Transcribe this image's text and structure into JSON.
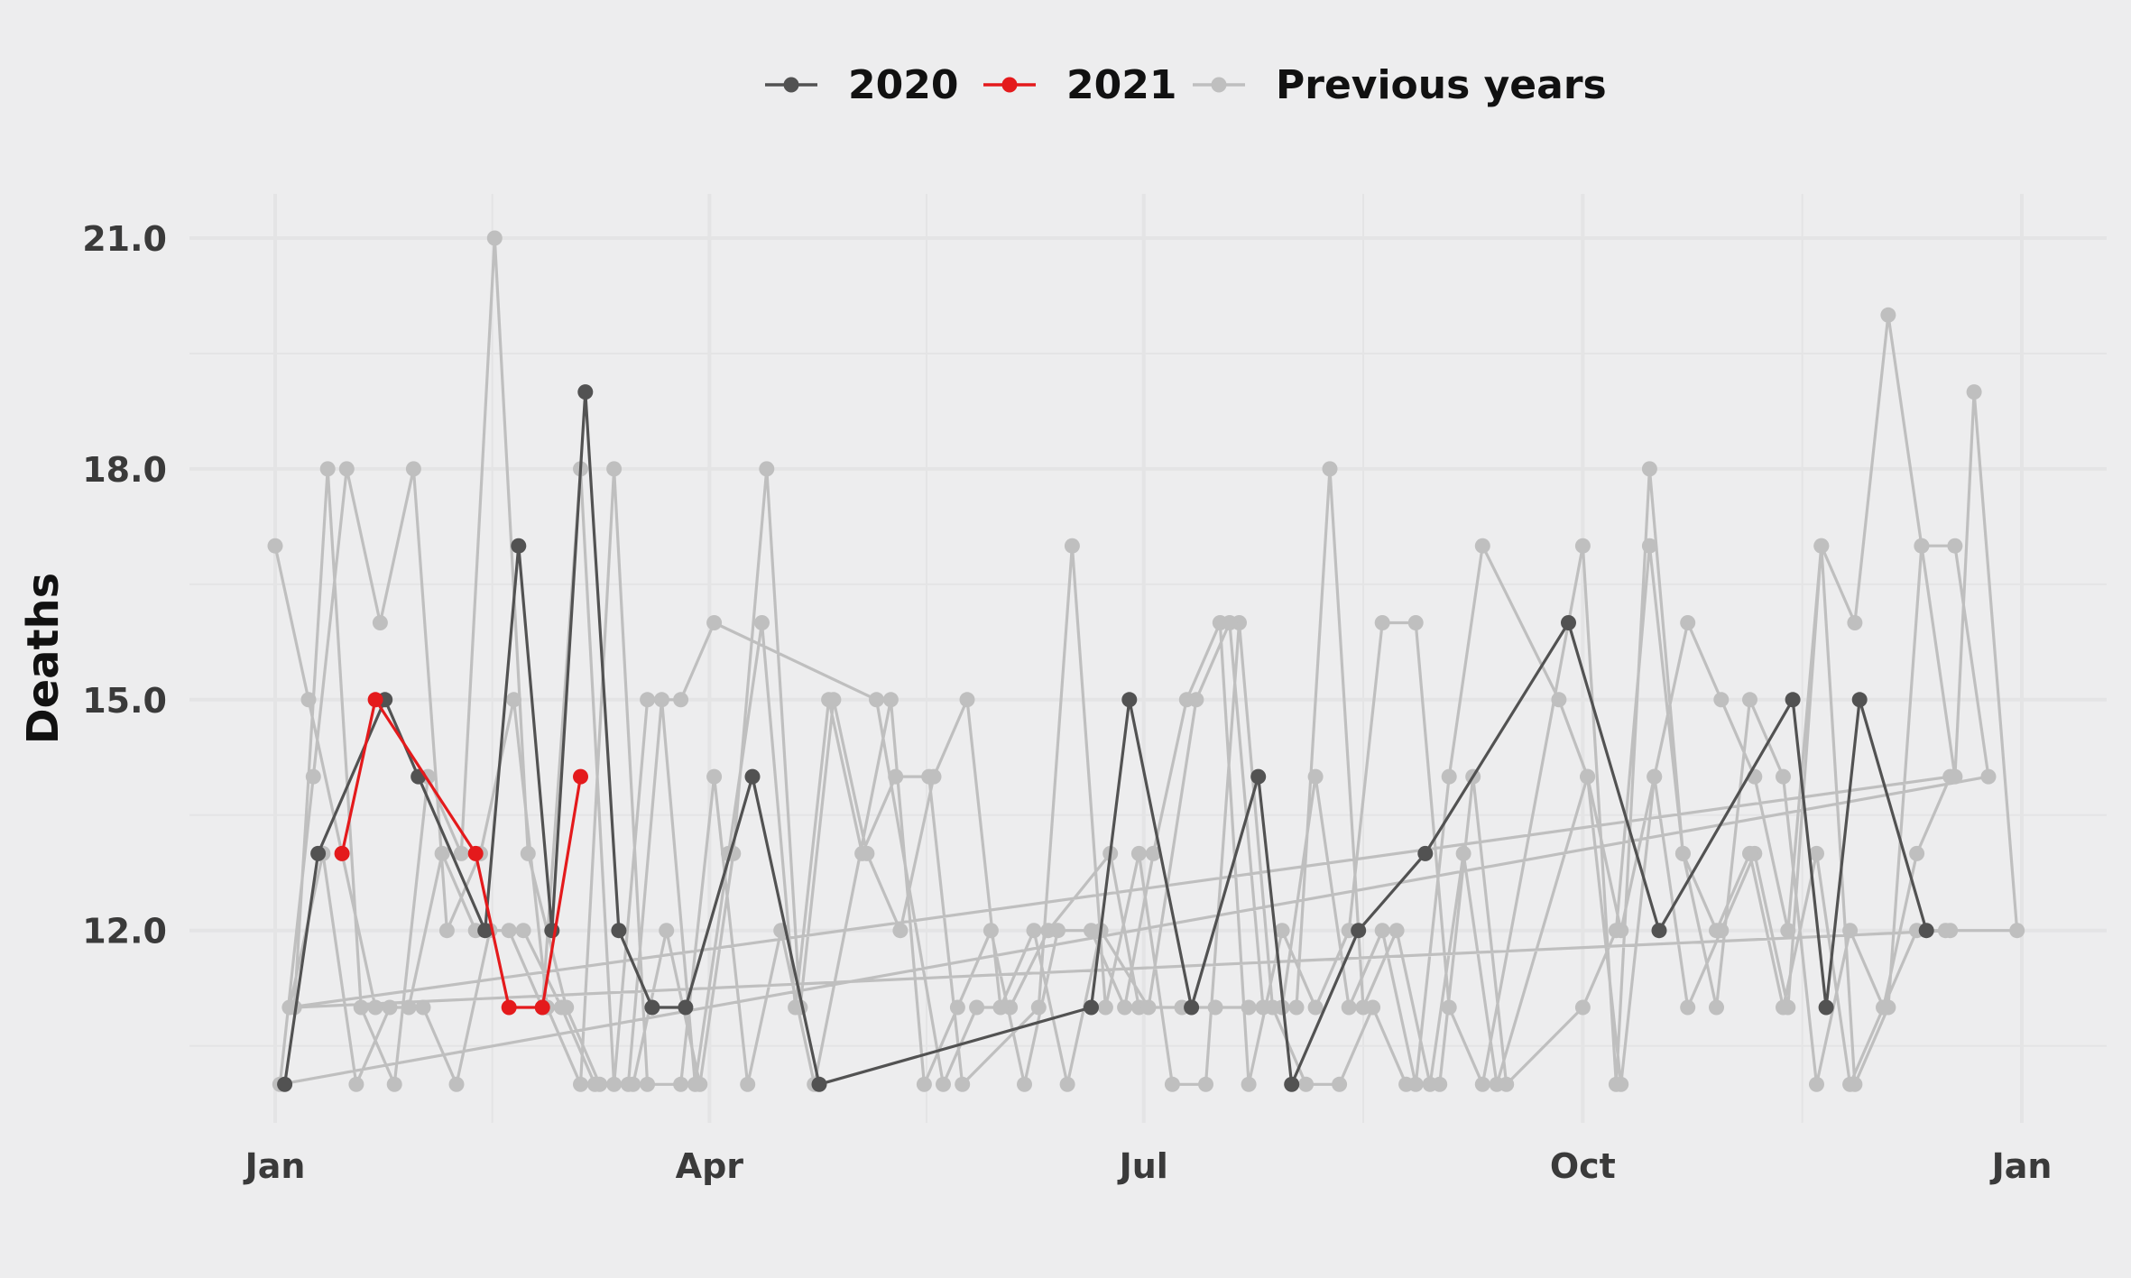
{
  "chart_data": {
    "type": "line",
    "title": "",
    "xlabel": "",
    "ylabel": "Deaths",
    "xlim": [
      "2020-01-01",
      "2021-01-01"
    ],
    "ylim": [
      9.4,
      20.9
    ],
    "x_tick_labels": [
      "Jan",
      "Apr",
      "Jul",
      "Oct",
      "Jan"
    ],
    "x_ticks": [
      "2020-01-01",
      "2020-04-01",
      "2020-07-01",
      "2020-10-01",
      "2021-01-01"
    ],
    "y_ticks": [
      12,
      15,
      18,
      21
    ],
    "y_tick_labels": [
      "12.0",
      "15.0",
      "18.0",
      "21.0"
    ],
    "grid": true,
    "legend_position": "top",
    "colors": {
      "2020": "#525252",
      "2021": "#e41a1c",
      "Previous years": "#bfbfbf",
      "background": "#ededee",
      "grid": "#e4e4e5"
    },
    "series": [
      {
        "name": "2020",
        "points": [
          [
            "2020-01-03",
            10
          ],
          [
            "2020-01-10",
            13
          ],
          [
            "2020-01-24",
            15
          ],
          [
            "2020-01-31",
            14
          ],
          [
            "2020-02-14",
            12
          ],
          [
            "2020-02-21",
            17
          ],
          [
            "2020-02-28",
            12
          ],
          [
            "2020-03-06",
            19
          ],
          [
            "2020-03-13",
            12
          ],
          [
            "2020-03-20",
            11
          ],
          [
            "2020-03-27",
            11
          ],
          [
            "2020-04-10",
            14
          ],
          [
            "2020-04-24",
            10
          ],
          [
            "2020-06-20",
            11
          ],
          [
            "2020-06-28",
            15
          ],
          [
            "2020-07-11",
            11
          ],
          [
            "2020-07-25",
            14
          ],
          [
            "2020-08-01",
            10
          ],
          [
            "2020-08-15",
            12
          ],
          [
            "2020-08-29",
            13
          ],
          [
            "2020-09-28",
            16
          ],
          [
            "2020-10-17",
            12
          ],
          [
            "2020-11-14",
            15
          ],
          [
            "2020-11-21",
            11
          ],
          [
            "2020-11-28",
            15
          ],
          [
            "2020-12-12",
            12
          ]
        ]
      },
      {
        "name": "2021",
        "points": [
          [
            "2020-01-15",
            13
          ],
          [
            "2020-01-22",
            15
          ],
          [
            "2020-02-12",
            13
          ],
          [
            "2020-02-19",
            11
          ],
          [
            "2020-02-26",
            11
          ],
          [
            "2020-03-05",
            14
          ]
        ]
      },
      {
        "name": "Previous years",
        "points": [
          [
            "2020-01-01",
            17
          ],
          [
            "2020-01-08",
            15
          ],
          [
            "2020-01-15",
            13
          ],
          [
            "2020-01-22",
            11
          ],
          [
            "2020-01-29",
            11
          ],
          [
            "2020-02-05",
            13
          ],
          [
            "2020-02-12",
            12
          ],
          [
            "2020-02-19",
            12
          ],
          [
            "2020-02-26",
            11
          ],
          [
            "2020-03-05",
            18
          ],
          [
            "2020-03-12",
            10
          ],
          [
            "2020-03-19",
            15
          ],
          [
            "2020-03-26",
            15
          ],
          [
            "2020-04-02",
            16
          ],
          [
            "2020-05-06",
            15
          ],
          [
            "2020-05-20",
            10
          ],
          [
            "2020-05-27",
            11
          ],
          [
            "2020-06-03",
            11
          ],
          [
            "2020-06-11",
            12
          ],
          [
            "2020-06-24",
            13
          ],
          [
            "2020-06-30",
            11
          ],
          [
            "2020-07-09",
            11
          ],
          [
            "2020-07-16",
            11
          ],
          [
            "2020-07-23",
            11
          ],
          [
            "2020-07-30",
            11
          ],
          [
            "2020-08-06",
            14
          ],
          [
            "2020-08-13",
            11
          ],
          [
            "2020-08-20",
            12
          ],
          [
            "2020-08-27",
            10
          ],
          [
            "2020-09-03",
            14
          ],
          [
            "2020-09-10",
            17
          ],
          [
            "2020-09-26",
            15
          ],
          [
            "2020-10-02",
            14
          ],
          [
            "2020-10-09",
            12
          ],
          [
            "2020-10-16",
            14
          ],
          [
            "2020-10-23",
            11
          ],
          [
            "2020-10-30",
            12
          ],
          [
            "2020-11-06",
            13
          ],
          [
            "2020-11-13",
            11
          ],
          [
            "2020-11-20",
            17
          ],
          [
            "2020-11-27",
            10
          ],
          [
            "2020-12-04",
            11
          ],
          [
            "2020-12-11",
            17
          ],
          [
            "2020-12-18",
            17
          ],
          [
            "2020-12-25",
            14
          ],
          [
            "2020-01-02",
            10
          ],
          [
            "2020-01-09",
            14
          ],
          [
            "2020-01-16",
            18
          ],
          [
            "2020-01-23",
            16
          ],
          [
            "2020-01-30",
            18
          ],
          [
            "2020-02-06",
            12
          ],
          [
            "2020-02-13",
            13
          ],
          [
            "2020-02-20",
            15
          ],
          [
            "2020-02-27",
            11
          ],
          [
            "2020-03-05",
            10
          ],
          [
            "2020-03-12",
            18
          ],
          [
            "2020-03-19",
            10
          ],
          [
            "2020-03-26",
            10
          ],
          [
            "2020-04-02",
            14
          ],
          [
            "2020-04-09",
            10
          ],
          [
            "2020-04-16",
            12
          ],
          [
            "2020-04-23",
            10
          ],
          [
            "2020-05-09",
            15
          ],
          [
            "2020-05-16",
            10
          ],
          [
            "2020-05-23",
            11
          ],
          [
            "2020-05-30",
            12
          ],
          [
            "2020-06-06",
            10
          ],
          [
            "2020-06-13",
            12
          ],
          [
            "2020-06-20",
            12
          ],
          [
            "2020-06-27",
            11
          ],
          [
            "2020-07-03",
            13
          ],
          [
            "2020-07-10",
            15
          ],
          [
            "2020-07-17",
            16
          ],
          [
            "2020-07-23",
            10
          ],
          [
            "2020-07-30",
            12
          ],
          [
            "2020-08-06",
            11
          ],
          [
            "2020-08-13",
            12
          ],
          [
            "2020-08-20",
            16
          ],
          [
            "2020-08-27",
            16
          ],
          [
            "2020-09-03",
            11
          ],
          [
            "2020-09-10",
            10
          ],
          [
            "2020-10-01",
            17
          ],
          [
            "2020-10-08",
            10
          ],
          [
            "2020-10-15",
            18
          ],
          [
            "2020-10-22",
            13
          ],
          [
            "2020-10-29",
            12
          ],
          [
            "2020-11-05",
            13
          ],
          [
            "2020-11-12",
            11
          ],
          [
            "2020-11-19",
            13
          ],
          [
            "2020-11-26",
            10
          ],
          [
            "2020-12-03",
            11
          ],
          [
            "2020-12-10",
            13
          ],
          [
            "2020-12-17",
            14
          ],
          [
            "2020-01-04",
            11
          ],
          [
            "2020-01-11",
            13
          ],
          [
            "2020-01-18",
            10
          ],
          [
            "2020-01-25",
            11
          ],
          [
            "2020-02-01",
            11
          ],
          [
            "2020-02-08",
            10
          ],
          [
            "2020-02-15",
            12
          ],
          [
            "2020-02-22",
            12
          ],
          [
            "2020-03-01",
            11
          ],
          [
            "2020-03-08",
            10
          ],
          [
            "2020-03-15",
            10
          ],
          [
            "2020-03-22",
            15
          ],
          [
            "2020-03-29",
            10
          ],
          [
            "2020-04-05",
            13
          ],
          [
            "2020-04-12",
            16
          ],
          [
            "2020-04-19",
            11
          ],
          [
            "2020-04-26",
            15
          ],
          [
            "2020-05-03",
            13
          ],
          [
            "2020-05-10",
            14
          ],
          [
            "2020-05-17",
            14
          ],
          [
            "2020-05-24",
            10
          ],
          [
            "2020-06-09",
            11
          ],
          [
            "2020-06-16",
            17
          ],
          [
            "2020-06-23",
            11
          ],
          [
            "2020-06-30",
            13
          ],
          [
            "2020-07-07",
            10
          ],
          [
            "2020-07-14",
            10
          ],
          [
            "2020-07-21",
            16
          ],
          [
            "2020-07-28",
            11
          ],
          [
            "2020-08-04",
            10
          ],
          [
            "2020-08-11",
            10
          ],
          [
            "2020-08-18",
            11
          ],
          [
            "2020-08-25",
            10
          ],
          [
            "2020-09-01",
            10
          ],
          [
            "2020-09-08",
            14
          ],
          [
            "2020-09-15",
            10
          ],
          [
            "2020-10-01",
            11
          ],
          [
            "2020-10-08",
            12
          ],
          [
            "2020-10-15",
            17
          ],
          [
            "2020-10-22",
            13
          ],
          [
            "2020-10-29",
            11
          ],
          [
            "2020-11-05",
            15
          ],
          [
            "2020-11-12",
            14
          ],
          [
            "2020-11-19",
            10
          ],
          [
            "2020-11-26",
            12
          ],
          [
            "2020-12-03",
            11
          ],
          [
            "2020-12-10",
            12
          ],
          [
            "2020-12-17",
            12
          ],
          [
            "2020-01-05",
            11
          ],
          [
            "2020-01-12",
            18
          ],
          [
            "2020-01-19",
            11
          ],
          [
            "2020-01-26",
            10
          ],
          [
            "2020-02-02",
            14
          ],
          [
            "2020-02-09",
            13
          ],
          [
            "2020-02-16",
            21
          ],
          [
            "2020-02-23",
            13
          ],
          [
            "2020-03-02",
            11
          ],
          [
            "2020-03-09",
            10
          ],
          [
            "2020-03-16",
            10
          ],
          [
            "2020-03-23",
            12
          ],
          [
            "2020-03-30",
            10
          ],
          [
            "2020-04-06",
            13
          ],
          [
            "2020-04-13",
            18
          ],
          [
            "2020-04-20",
            11
          ],
          [
            "2020-04-27",
            15
          ],
          [
            "2020-05-04",
            13
          ],
          [
            "2020-05-11",
            12
          ],
          [
            "2020-05-18",
            14
          ],
          [
            "2020-05-25",
            15
          ],
          [
            "2020-06-01",
            11
          ],
          [
            "2020-06-08",
            12
          ],
          [
            "2020-06-15",
            10
          ],
          [
            "2020-06-22",
            12
          ],
          [
            "2020-07-02",
            11
          ],
          [
            "2020-07-12",
            15
          ],
          [
            "2020-07-19",
            16
          ],
          [
            "2020-07-26",
            11
          ],
          [
            "2020-08-02",
            11
          ],
          [
            "2020-08-09",
            18
          ],
          [
            "2020-08-16",
            11
          ],
          [
            "2020-08-23",
            12
          ],
          [
            "2020-08-30",
            10
          ],
          [
            "2020-09-06",
            13
          ],
          [
            "2020-09-13",
            10
          ],
          [
            "2020-10-02",
            14
          ],
          [
            "2020-10-09",
            10
          ],
          [
            "2020-10-16",
            14
          ],
          [
            "2020-10-23",
            16
          ],
          [
            "2020-10-30",
            15
          ],
          [
            "2020-11-06",
            14
          ],
          [
            "2020-11-13",
            12
          ],
          [
            "2020-11-20",
            17
          ],
          [
            "2020-11-27",
            16
          ],
          [
            "2020-12-04",
            20
          ],
          [
            "2020-12-11",
            17
          ],
          [
            "2020-12-18",
            14
          ],
          [
            "2020-12-22",
            19
          ],
          [
            "2020-12-31",
            12
          ],
          [
            "2020-12-16",
            12
          ]
        ]
      }
    ]
  }
}
